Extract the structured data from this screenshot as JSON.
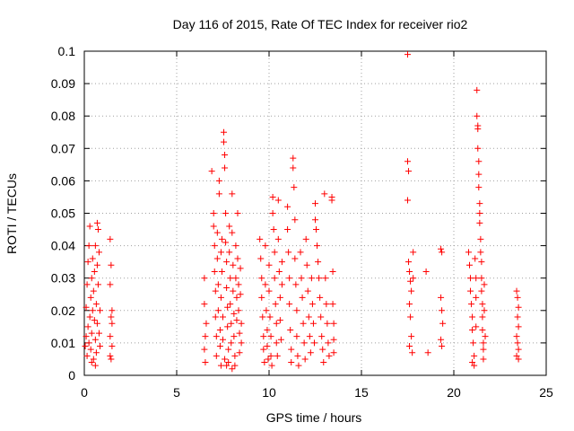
{
  "chart_data": {
    "type": "scatter",
    "title": "Day 116 of 2015, Rate Of TEC Index for receiver rio2",
    "xlabel": "GPS time / hours",
    "ylabel": "ROTI / TECUs",
    "xlim": [
      0,
      25
    ],
    "ylim": [
      0,
      0.1
    ],
    "x_ticks": [
      "0",
      "5",
      "10",
      "15",
      "20",
      "25"
    ],
    "y_ticks": [
      "0",
      "0.01",
      "0.02",
      "0.03",
      "0.04",
      "0.05",
      "0.06",
      "0.07",
      "0.08",
      "0.09",
      "0.1"
    ],
    "grid": true,
    "marker": "+",
    "color": "#ff0000",
    "points": [
      [
        0.05,
        0.009
      ],
      [
        0.1,
        0.012
      ],
      [
        0.1,
        0.021
      ],
      [
        0.15,
        0.028
      ],
      [
        0.15,
        0.006
      ],
      [
        0.2,
        0.015
      ],
      [
        0.2,
        0.035
      ],
      [
        0.25,
        0.01
      ],
      [
        0.25,
        0.04
      ],
      [
        0.3,
        0.018
      ],
      [
        0.3,
        0.046
      ],
      [
        0.35,
        0.024
      ],
      [
        0.35,
        0.008
      ],
      [
        0.4,
        0.03
      ],
      [
        0.4,
        0.013
      ],
      [
        0.45,
        0.02
      ],
      [
        0.45,
        0.036
      ],
      [
        0.5,
        0.005
      ],
      [
        0.5,
        0.026
      ],
      [
        0.55,
        0.017
      ],
      [
        0.55,
        0.032
      ],
      [
        0.6,
        0.011
      ],
      [
        0.6,
        0.04
      ],
      [
        0.65,
        0.022
      ],
      [
        0.65,
        0.007
      ],
      [
        0.7,
        0.016
      ],
      [
        0.7,
        0.034
      ],
      [
        0.75,
        0.028
      ],
      [
        0.75,
        0.045
      ],
      [
        0.8,
        0.013
      ],
      [
        0.8,
        0.038
      ],
      [
        0.85,
        0.02
      ],
      [
        0.85,
        0.009
      ],
      [
        0.7,
        0.047
      ],
      [
        0.6,
        0.003
      ],
      [
        0.4,
        0.004
      ],
      [
        1.4,
        0.042
      ],
      [
        1.45,
        0.034
      ],
      [
        1.4,
        0.028
      ],
      [
        1.5,
        0.02
      ],
      [
        1.45,
        0.018
      ],
      [
        1.4,
        0.012
      ],
      [
        1.5,
        0.009
      ],
      [
        1.45,
        0.005
      ],
      [
        1.4,
        0.006
      ],
      [
        1.5,
        0.016
      ],
      [
        6.5,
        0.03
      ],
      [
        6.5,
        0.022
      ],
      [
        6.55,
        0.012
      ],
      [
        6.5,
        0.008
      ],
      [
        6.55,
        0.004
      ],
      [
        6.6,
        0.016
      ],
      [
        6.9,
        0.063
      ],
      [
        7.0,
        0.05
      ],
      [
        7.0,
        0.046
      ],
      [
        7.05,
        0.04
      ],
      [
        7.05,
        0.032
      ],
      [
        7.1,
        0.026
      ],
      [
        7.1,
        0.018
      ],
      [
        7.15,
        0.012
      ],
      [
        7.15,
        0.006
      ],
      [
        7.2,
        0.036
      ],
      [
        7.2,
        0.044
      ],
      [
        7.25,
        0.028
      ],
      [
        7.25,
        0.02
      ],
      [
        7.3,
        0.056
      ],
      [
        7.3,
        0.06
      ],
      [
        7.35,
        0.014
      ],
      [
        7.35,
        0.009
      ],
      [
        7.4,
        0.038
      ],
      [
        7.4,
        0.024
      ],
      [
        7.45,
        0.042
      ],
      [
        7.45,
        0.032
      ],
      [
        7.5,
        0.018
      ],
      [
        7.5,
        0.011
      ],
      [
        7.55,
        0.075
      ],
      [
        7.55,
        0.072
      ],
      [
        7.6,
        0.068
      ],
      [
        7.6,
        0.064
      ],
      [
        7.65,
        0.05
      ],
      [
        7.65,
        0.041
      ],
      [
        7.7,
        0.035
      ],
      [
        7.7,
        0.027
      ],
      [
        7.75,
        0.021
      ],
      [
        7.75,
        0.015
      ],
      [
        7.8,
        0.008
      ],
      [
        7.8,
        0.004
      ],
      [
        7.85,
        0.046
      ],
      [
        7.85,
        0.038
      ],
      [
        7.9,
        0.03
      ],
      [
        7.9,
        0.022
      ],
      [
        7.95,
        0.016
      ],
      [
        7.95,
        0.01
      ],
      [
        8.0,
        0.056
      ],
      [
        8.0,
        0.044
      ],
      [
        8.05,
        0.034
      ],
      [
        8.05,
        0.026
      ],
      [
        8.1,
        0.019
      ],
      [
        8.1,
        0.012
      ],
      [
        8.15,
        0.006
      ],
      [
        8.15,
        0.003
      ],
      [
        8.2,
        0.04
      ],
      [
        8.2,
        0.03
      ],
      [
        8.25,
        0.024
      ],
      [
        8.25,
        0.017
      ],
      [
        8.3,
        0.05
      ],
      [
        8.3,
        0.036
      ],
      [
        8.35,
        0.028
      ],
      [
        8.35,
        0.02
      ],
      [
        8.4,
        0.013
      ],
      [
        8.4,
        0.007
      ],
      [
        8.45,
        0.033
      ],
      [
        8.45,
        0.025
      ],
      [
        8.5,
        0.016
      ],
      [
        8.5,
        0.01
      ],
      [
        7.6,
        0.005
      ],
      [
        7.7,
        0.003
      ],
      [
        8.0,
        0.002
      ],
      [
        7.4,
        0.003
      ],
      [
        9.5,
        0.042
      ],
      [
        9.55,
        0.036
      ],
      [
        9.6,
        0.03
      ],
      [
        9.6,
        0.024
      ],
      [
        9.65,
        0.018
      ],
      [
        9.7,
        0.012
      ],
      [
        9.7,
        0.008
      ],
      [
        9.75,
        0.004
      ],
      [
        9.8,
        0.04
      ],
      [
        9.8,
        0.028
      ],
      [
        9.85,
        0.02
      ],
      [
        9.9,
        0.014
      ],
      [
        9.9,
        0.009
      ],
      [
        9.95,
        0.005
      ],
      [
        10.0,
        0.034
      ],
      [
        10.0,
        0.026
      ],
      [
        10.05,
        0.018
      ],
      [
        10.1,
        0.012
      ],
      [
        10.1,
        0.006
      ],
      [
        10.15,
        0.003
      ],
      [
        10.2,
        0.055
      ],
      [
        10.2,
        0.05
      ],
      [
        10.25,
        0.045
      ],
      [
        10.3,
        0.038
      ],
      [
        10.3,
        0.03
      ],
      [
        10.35,
        0.022
      ],
      [
        10.4,
        0.016
      ],
      [
        10.4,
        0.01
      ],
      [
        10.45,
        0.006
      ],
      [
        10.5,
        0.054
      ],
      [
        10.5,
        0.042
      ],
      [
        10.55,
        0.032
      ],
      [
        10.6,
        0.024
      ],
      [
        10.6,
        0.017
      ],
      [
        10.65,
        0.011
      ],
      [
        10.7,
        0.035
      ],
      [
        10.7,
        0.028
      ],
      [
        11.0,
        0.052
      ],
      [
        11.0,
        0.045
      ],
      [
        11.05,
        0.038
      ],
      [
        11.1,
        0.03
      ],
      [
        11.1,
        0.022
      ],
      [
        11.15,
        0.014
      ],
      [
        11.2,
        0.008
      ],
      [
        11.2,
        0.004
      ],
      [
        11.3,
        0.067
      ],
      [
        11.3,
        0.064
      ],
      [
        11.35,
        0.058
      ],
      [
        11.4,
        0.048
      ],
      [
        11.4,
        0.036
      ],
      [
        11.45,
        0.028
      ],
      [
        11.5,
        0.02
      ],
      [
        11.5,
        0.012
      ],
      [
        11.55,
        0.006
      ],
      [
        11.6,
        0.003
      ],
      [
        11.7,
        0.038
      ],
      [
        11.75,
        0.03
      ],
      [
        11.8,
        0.024
      ],
      [
        11.85,
        0.016
      ],
      [
        11.9,
        0.01
      ],
      [
        11.95,
        0.005
      ],
      [
        12.0,
        0.042
      ],
      [
        12.05,
        0.034
      ],
      [
        12.1,
        0.026
      ],
      [
        12.15,
        0.018
      ],
      [
        12.2,
        0.012
      ],
      [
        12.25,
        0.007
      ],
      [
        12.3,
        0.03
      ],
      [
        12.35,
        0.022
      ],
      [
        12.4,
        0.016
      ],
      [
        12.45,
        0.01
      ],
      [
        12.5,
        0.053
      ],
      [
        12.5,
        0.048
      ],
      [
        12.55,
        0.045
      ],
      [
        12.6,
        0.04
      ],
      [
        12.65,
        0.035
      ],
      [
        12.7,
        0.03
      ],
      [
        12.75,
        0.024
      ],
      [
        12.8,
        0.018
      ],
      [
        12.85,
        0.012
      ],
      [
        12.9,
        0.008
      ],
      [
        12.95,
        0.004
      ],
      [
        13.0,
        0.056
      ],
      [
        13.05,
        0.03
      ],
      [
        13.1,
        0.022
      ],
      [
        13.15,
        0.016
      ],
      [
        13.2,
        0.01
      ],
      [
        13.25,
        0.006
      ],
      [
        13.4,
        0.055
      ],
      [
        13.4,
        0.054
      ],
      [
        13.45,
        0.032
      ],
      [
        13.45,
        0.022
      ],
      [
        13.5,
        0.016
      ],
      [
        13.5,
        0.011
      ],
      [
        13.5,
        0.007
      ],
      [
        17.5,
        0.099
      ],
      [
        17.5,
        0.066
      ],
      [
        17.55,
        0.063
      ],
      [
        17.5,
        0.054
      ],
      [
        17.55,
        0.035
      ],
      [
        17.6,
        0.032
      ],
      [
        17.65,
        0.029
      ],
      [
        17.7,
        0.026
      ],
      [
        17.6,
        0.022
      ],
      [
        17.65,
        0.018
      ],
      [
        17.7,
        0.012
      ],
      [
        17.6,
        0.009
      ],
      [
        17.75,
        0.007
      ],
      [
        17.8,
        0.038
      ],
      [
        17.8,
        0.03
      ],
      [
        18.5,
        0.032
      ],
      [
        18.6,
        0.007
      ],
      [
        19.3,
        0.039
      ],
      [
        19.35,
        0.038
      ],
      [
        19.3,
        0.024
      ],
      [
        19.35,
        0.02
      ],
      [
        19.4,
        0.016
      ],
      [
        19.3,
        0.011
      ],
      [
        19.35,
        0.009
      ],
      [
        20.8,
        0.038
      ],
      [
        20.85,
        0.034
      ],
      [
        20.9,
        0.03
      ],
      [
        20.9,
        0.026
      ],
      [
        20.95,
        0.022
      ],
      [
        21.0,
        0.018
      ],
      [
        21.0,
        0.014
      ],
      [
        21.05,
        0.01
      ],
      [
        21.1,
        0.006
      ],
      [
        21.1,
        0.003
      ],
      [
        21.15,
        0.036
      ],
      [
        21.2,
        0.03
      ],
      [
        21.2,
        0.024
      ],
      [
        21.25,
        0.088
      ],
      [
        21.25,
        0.08
      ],
      [
        21.3,
        0.077
      ],
      [
        21.3,
        0.076
      ],
      [
        21.3,
        0.07
      ],
      [
        21.35,
        0.066
      ],
      [
        21.35,
        0.062
      ],
      [
        21.35,
        0.058
      ],
      [
        21.4,
        0.053
      ],
      [
        21.4,
        0.05
      ],
      [
        21.4,
        0.047
      ],
      [
        21.45,
        0.042
      ],
      [
        21.45,
        0.038
      ],
      [
        21.5,
        0.035
      ],
      [
        21.5,
        0.03
      ],
      [
        21.5,
        0.026
      ],
      [
        21.55,
        0.022
      ],
      [
        21.55,
        0.018
      ],
      [
        21.55,
        0.014
      ],
      [
        21.6,
        0.01
      ],
      [
        21.6,
        0.008
      ],
      [
        21.6,
        0.005
      ],
      [
        21.65,
        0.028
      ],
      [
        21.65,
        0.02
      ],
      [
        21.7,
        0.012
      ],
      [
        21.2,
        0.015
      ],
      [
        21.0,
        0.004
      ],
      [
        23.4,
        0.026
      ],
      [
        23.45,
        0.024
      ],
      [
        23.5,
        0.021
      ],
      [
        23.45,
        0.018
      ],
      [
        23.5,
        0.015
      ],
      [
        23.4,
        0.012
      ],
      [
        23.45,
        0.01
      ],
      [
        23.5,
        0.008
      ],
      [
        23.4,
        0.006
      ],
      [
        23.5,
        0.005
      ]
    ]
  }
}
